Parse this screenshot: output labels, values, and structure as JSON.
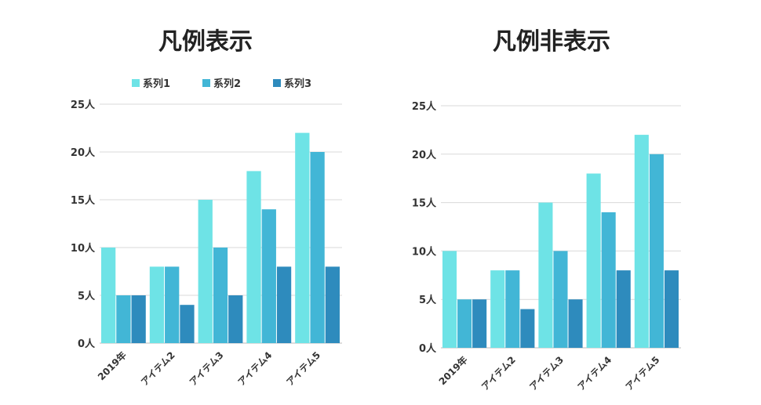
{
  "chart_data": [
    {
      "type": "bar",
      "title": "凡例表示",
      "legend": {
        "visible": true,
        "position": "top"
      },
      "categories": [
        "2019年",
        "アイテム2",
        "アイテム3",
        "アイテム4",
        "アイテム5"
      ],
      "series": [
        {
          "name": "系列1",
          "color": "#6ee3e6",
          "values": [
            10,
            8,
            15,
            18,
            22
          ]
        },
        {
          "name": "系列2",
          "color": "#42b6d6",
          "values": [
            5,
            8,
            10,
            14,
            20
          ]
        },
        {
          "name": "系列3",
          "color": "#2e8bbd",
          "values": [
            5,
            4,
            5,
            8,
            8
          ]
        }
      ],
      "ylim": [
        0,
        25
      ],
      "yticks": [
        0,
        5,
        10,
        15,
        20,
        25
      ],
      "ytick_labels": [
        "0人",
        "5人",
        "10人",
        "15人",
        "20人",
        "25人"
      ],
      "grid": true
    },
    {
      "type": "bar",
      "title": "凡例非表示",
      "legend": {
        "visible": false
      },
      "categories": [
        "2019年",
        "アイテム2",
        "アイテム3",
        "アイテム4",
        "アイテム5"
      ],
      "series": [
        {
          "color": "#6ee3e6",
          "values": [
            10,
            8,
            15,
            18,
            22
          ]
        },
        {
          "color": "#42b6d6",
          "values": [
            5,
            8,
            10,
            14,
            20
          ]
        },
        {
          "color": "#2e8bbd",
          "values": [
            5,
            4,
            5,
            8,
            8
          ]
        }
      ],
      "ylim": [
        0,
        25
      ],
      "yticks": [
        0,
        5,
        10,
        15,
        20,
        25
      ],
      "ytick_labels": [
        "0人",
        "5人",
        "10人",
        "15人",
        "20人",
        "25人"
      ],
      "grid": true
    }
  ]
}
